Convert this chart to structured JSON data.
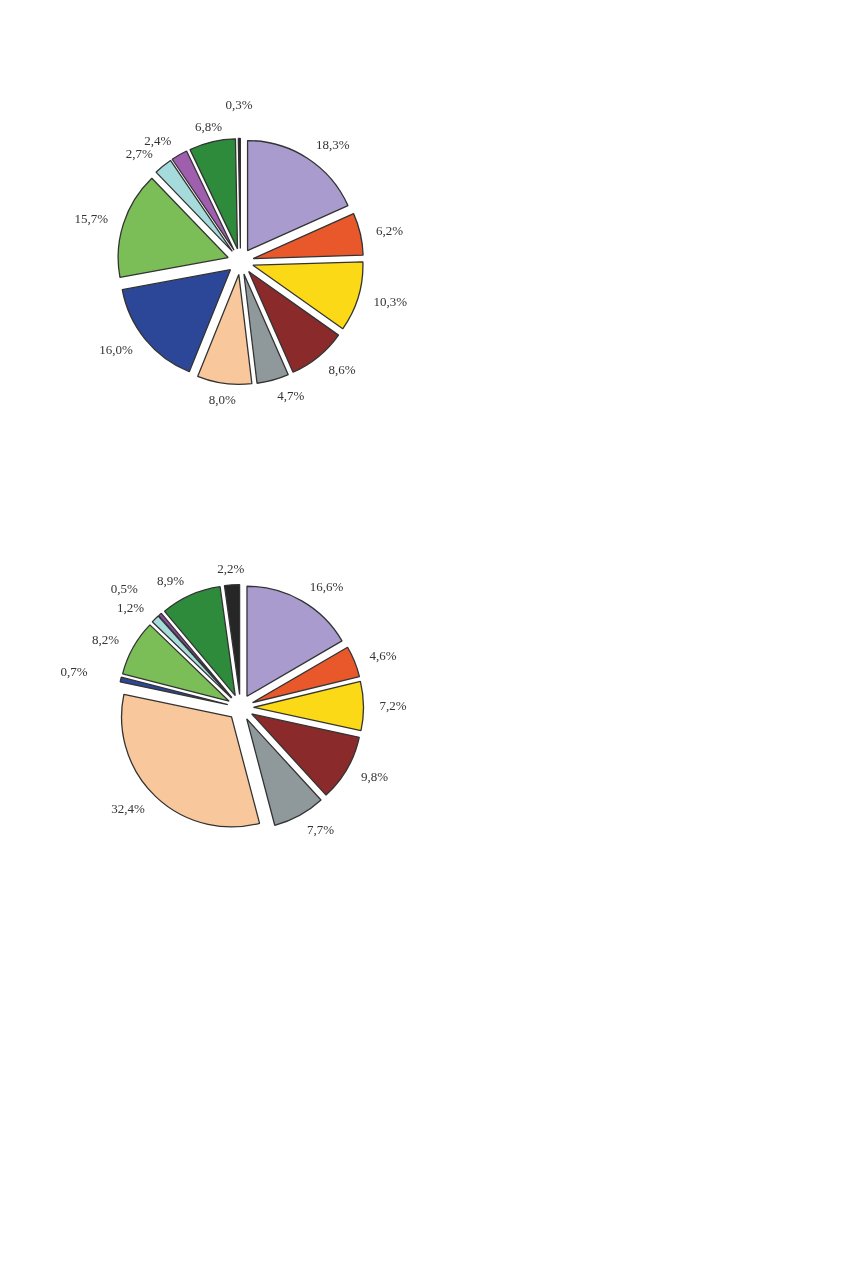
{
  "chart_data": [
    {
      "type": "pie",
      "categories": [
        null,
        null,
        null,
        null,
        null,
        null,
        null,
        null,
        null,
        null,
        null,
        null
      ],
      "values": [
        18.3,
        6.2,
        10.3,
        8.6,
        4.7,
        8.0,
        16.0,
        15.7,
        2.7,
        2.4,
        6.8,
        0.3
      ],
      "value_labels": [
        "18,3%",
        "6,2%",
        "10,3%",
        "8,6%",
        "4,7%",
        "8,0%",
        "16,0%",
        "15,7%",
        "2,7%",
        "2,4%",
        "6,8%",
        "0,3%"
      ],
      "colors": [
        "#a99bcd",
        "#e8582b",
        "#fcd917",
        "#8b2a2a",
        "#8f989a",
        "#f9c79c",
        "#2c4798",
        "#7bbd56",
        "#a6dbdc",
        "#a05eae",
        "#2e8b3c",
        "#262626"
      ]
    },
    {
      "type": "pie",
      "categories": [
        null,
        null,
        null,
        null,
        null,
        null,
        null,
        null,
        null,
        null,
        null,
        null
      ],
      "values": [
        16.6,
        4.6,
        7.2,
        9.8,
        7.7,
        32.4,
        0.7,
        8.2,
        1.2,
        0.5,
        8.9,
        2.2
      ],
      "value_labels": [
        "16,6%",
        "4,6%",
        "7,2%",
        "9,8%",
        "7,7%",
        "32,4%",
        "0,7%",
        "8,2%",
        "1,2%",
        "0,5%",
        "8,9%",
        "2,2%"
      ],
      "colors": [
        "#a99bcd",
        "#e8582b",
        "#fcd917",
        "#8b2a2a",
        "#8f989a",
        "#f9c79c",
        "#2c4798",
        "#7bbd56",
        "#a6dbdc",
        "#8e4a9e",
        "#2e8b3c",
        "#262626"
      ]
    }
  ]
}
